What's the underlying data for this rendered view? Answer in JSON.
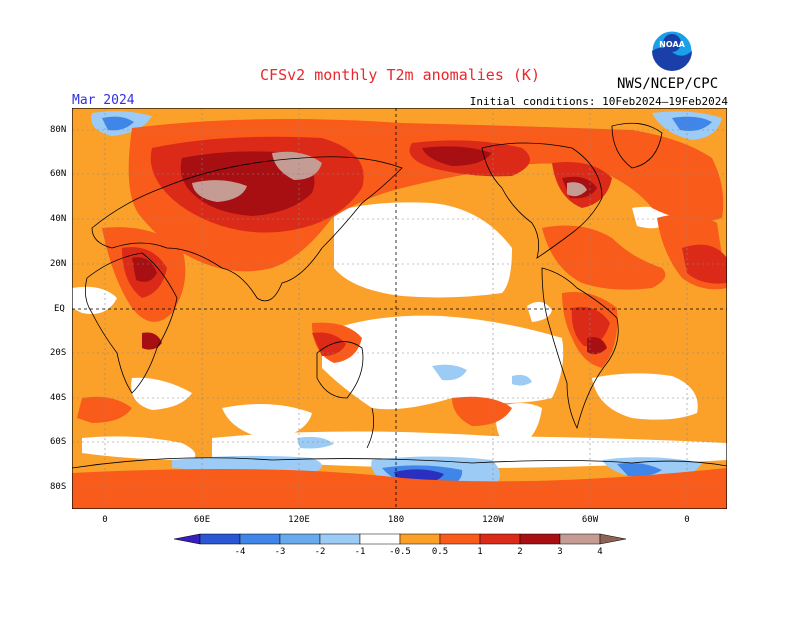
{
  "title": "CFSv2 monthly T2m anomalies (K)",
  "valid_month": "Mar 2024",
  "initial_conditions": "Initial conditions: 10Feb2024–19Feb2024",
  "agency": "NWS/NCEP/CPC",
  "logo_text": "NOAA",
  "colors": {
    "title": "#e8282d",
    "month": "#3030e0"
  },
  "lon_labels": [
    "0",
    "60E",
    "120E",
    "180",
    "120W",
    "60W",
    "0"
  ],
  "lat_labels": [
    "80N",
    "60N",
    "40N",
    "20N",
    "EQ",
    "20S",
    "40S",
    "60S",
    "80S"
  ],
  "colorbar": {
    "labels": [
      "-4",
      "-3",
      "-2",
      "-1",
      "-0.5",
      "0.5",
      "1",
      "2",
      "3",
      "4"
    ],
    "colors": [
      "#3a1fbf",
      "#2b56d6",
      "#3f86e8",
      "#68aaee",
      "#9ccbf6",
      "#ffffff",
      "#fba12a",
      "#f85b1a",
      "#db2a18",
      "#a80f12",
      "#c49c93",
      "#8e6356"
    ]
  }
}
